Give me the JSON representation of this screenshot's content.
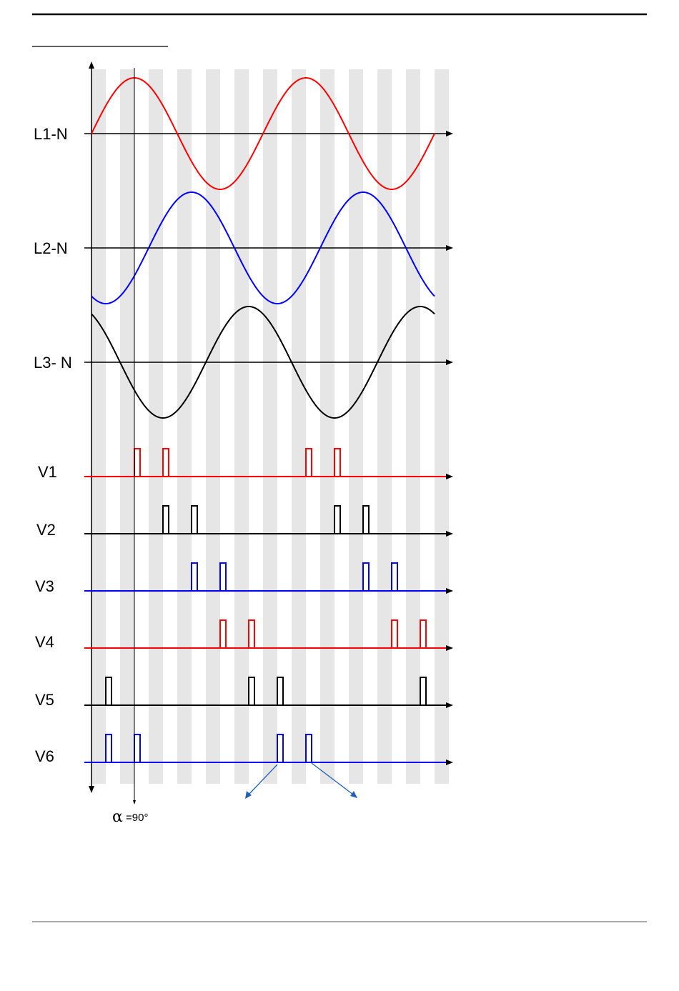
{
  "diagram": {
    "phases": [
      {
        "label": "L1-N",
        "color": "#ff0000",
        "phase_deg": 0
      },
      {
        "label": "L2-N",
        "color": "#0000ff",
        "phase_deg": -120
      },
      {
        "label": "L3- N",
        "color": "#000000",
        "phase_deg": 120
      }
    ],
    "pulse_channels": [
      {
        "label": "V1",
        "color": "#ff0000",
        "pulse_angles_deg": [
          90,
          150,
          450,
          510
        ]
      },
      {
        "label": "V2",
        "color": "#000000",
        "pulse_angles_deg": [
          150,
          210,
          510,
          570
        ]
      },
      {
        "label": "V3",
        "color": "#0000ff",
        "pulse_angles_deg": [
          210,
          270,
          570,
          630
        ]
      },
      {
        "label": "V4",
        "color": "#ff0000",
        "pulse_angles_deg": [
          270,
          330,
          630,
          690
        ]
      },
      {
        "label": "V5",
        "color": "#000000",
        "pulse_angles_deg": [
          30,
          330,
          390,
          690
        ]
      },
      {
        "label": "V6",
        "color": "#0000ff",
        "pulse_angles_deg": [
          30,
          90,
          390,
          450
        ]
      }
    ],
    "total_angle_deg": 720,
    "stripe_count": 25,
    "firing_angle_label": "=90°",
    "firing_angle_symbol": "α",
    "colors": {
      "stripe": "#e6e6e6",
      "arrow": "#1f5fb4",
      "rule": "#000000"
    }
  }
}
